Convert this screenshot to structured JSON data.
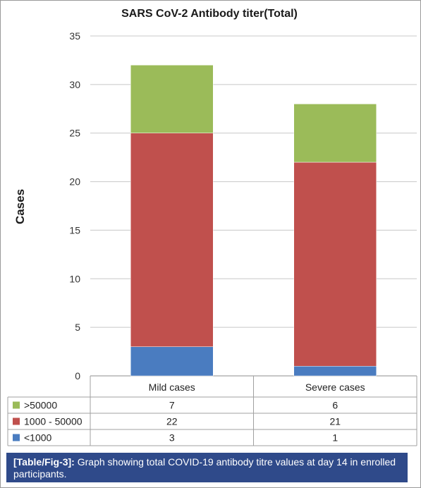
{
  "chart_data": {
    "type": "bar",
    "stacked": true,
    "title": "SARS CoV-2 Antibody titer(Total)",
    "ylabel": "Cases",
    "xlabel": "",
    "ylim": [
      0,
      35
    ],
    "yticks": [
      0,
      5,
      10,
      15,
      20,
      25,
      30,
      35
    ],
    "grid": true,
    "categories": [
      "Mild cases",
      "Severe cases"
    ],
    "series": [
      {
        "name": "<1000",
        "values": [
          3,
          1
        ],
        "color": "#4a7cc0"
      },
      {
        "name": "1000 - 50000",
        "values": [
          22,
          21
        ],
        "color": "#c0504d"
      },
      {
        "name": ">50000",
        "values": [
          7,
          6
        ],
        "color": "#9bbb59"
      }
    ],
    "legend_placement": "data-table-left"
  },
  "caption": {
    "label": "[Table/Fig-3]:",
    "text": "Graph showing total COVID-19 antibody titre values at day 14 in enrolled participants."
  }
}
